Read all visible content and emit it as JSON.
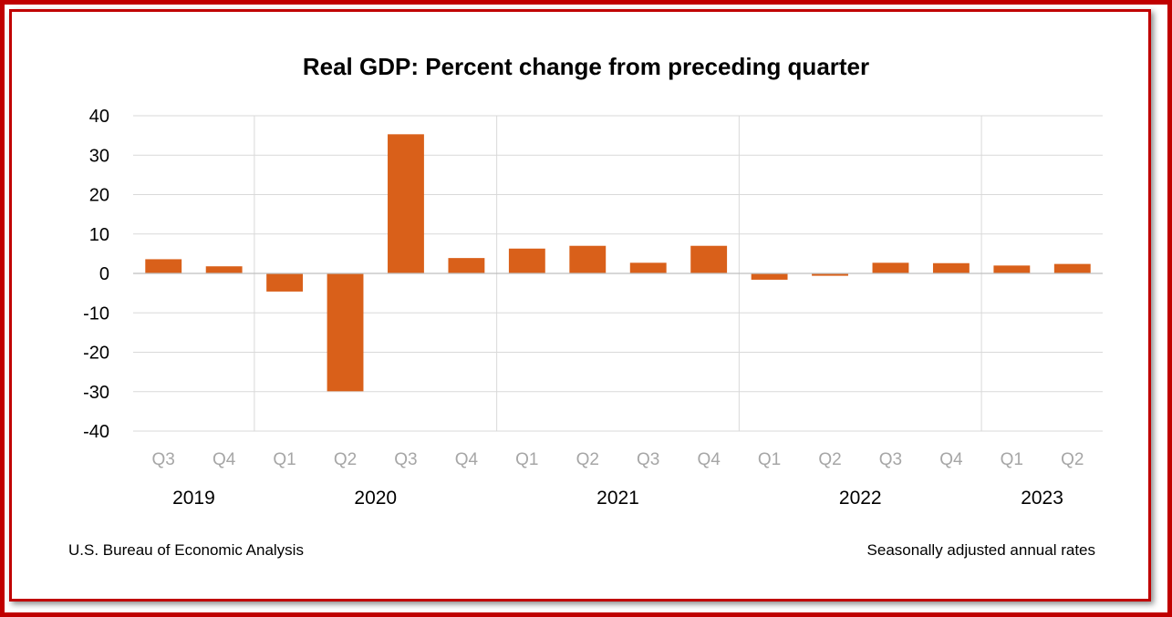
{
  "colors": {
    "bar": "#d9601a",
    "frame": "#c00000",
    "grid": "#d9d9d9",
    "quarter_label": "#a6a6a6"
  },
  "chart_data": {
    "type": "bar",
    "title": "Real GDP:  Percent change from preceding quarter",
    "xlabel": "",
    "ylabel": "",
    "ylim": [
      -40,
      40
    ],
    "yticks": [
      40,
      30,
      20,
      10,
      0,
      -10,
      -20,
      -30,
      -40
    ],
    "categories": [
      "Q3",
      "Q4",
      "Q1",
      "Q2",
      "Q3",
      "Q4",
      "Q1",
      "Q2",
      "Q3",
      "Q4",
      "Q1",
      "Q2",
      "Q3",
      "Q4",
      "Q1",
      "Q2"
    ],
    "values": [
      3.6,
      1.8,
      -4.6,
      -29.9,
      35.3,
      3.9,
      6.3,
      7.0,
      2.7,
      7.0,
      -1.6,
      -0.6,
      2.7,
      2.6,
      2.0,
      2.4
    ],
    "year_groups": [
      {
        "year": "2019",
        "start": 0,
        "end": 1
      },
      {
        "year": "2020",
        "start": 2,
        "end": 5
      },
      {
        "year": "2021",
        "start": 6,
        "end": 9
      },
      {
        "year": "2022",
        "start": 10,
        "end": 13
      },
      {
        "year": "2023",
        "start": 14,
        "end": 15
      }
    ],
    "grid": true,
    "legend": "none"
  },
  "footer": {
    "source": "U.S. Bureau of Economic Analysis",
    "note": "Seasonally adjusted annual rates"
  }
}
